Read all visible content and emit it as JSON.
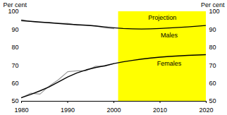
{
  "chart_data": {
    "type": "line",
    "y_label": "Per cent",
    "x": [
      1980,
      1982,
      1984,
      1986,
      1988,
      1990,
      1992,
      1994,
      1996,
      1998,
      2000,
      2002,
      2004,
      2006,
      2008,
      2010,
      2012,
      2014,
      2016,
      2018,
      2020
    ],
    "series": [
      {
        "color": "#999999",
        "values": [
          95.5,
          94.5,
          94,
          94,
          93.5,
          93.5,
          92.5,
          92.5,
          92,
          91,
          90.5,
          null,
          null,
          null,
          null,
          null,
          null,
          null,
          null,
          null,
          null
        ]
      },
      {
        "color": "#999999",
        "values": [
          52,
          54.5,
          54,
          58.5,
          62,
          66.5,
          67,
          67,
          69.5,
          69.5,
          71,
          null,
          null,
          null,
          null,
          null,
          null,
          null,
          null,
          null,
          null
        ]
      },
      {
        "name": "Males",
        "color": "#000000",
        "values": [
          95,
          94.6,
          94.2,
          93.8,
          93.4,
          93,
          92.7,
          92.4,
          92,
          91.5,
          91,
          90.6,
          90.4,
          90.3,
          90.4,
          90.6,
          90.9,
          91.2,
          91.5,
          91.9,
          92.3
        ]
      },
      {
        "name": "Females",
        "color": "#000000",
        "values": [
          52,
          53.8,
          55.8,
          58,
          60.8,
          63.5,
          65.8,
          67.5,
          68.8,
          69.8,
          71,
          72,
          72.8,
          73.5,
          74.1,
          74.6,
          75,
          75.3,
          75.6,
          75.8,
          76
        ]
      }
    ],
    "projection": {
      "label": "Projection",
      "x": [
        2001,
        2020
      ],
      "color": "#ffff00"
    },
    "xlim": [
      1980,
      2020
    ],
    "xticks": [
      1980,
      1990,
      2000,
      2010,
      2020
    ],
    "ylim": [
      50,
      100
    ],
    "yticks": [
      50,
      60,
      70,
      80,
      90,
      100
    ],
    "grid": false
  }
}
